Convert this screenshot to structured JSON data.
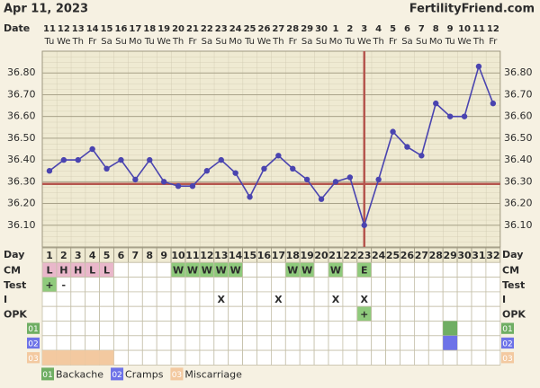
{
  "chart_data": {
    "type": "line",
    "title": "Apr 11, 2023",
    "site": "FertilityFriend.com",
    "date_label": "Date",
    "day_label": "Day",
    "dates": [
      11,
      12,
      13,
      14,
      15,
      16,
      17,
      18,
      19,
      20,
      21,
      22,
      23,
      24,
      25,
      26,
      27,
      28,
      29,
      30,
      1,
      2,
      3,
      4,
      5,
      6,
      7,
      8,
      9,
      10,
      11,
      12
    ],
    "weekdays": [
      "Tu",
      "We",
      "Th",
      "Fr",
      "Sa",
      "Su",
      "Mo",
      "Tu",
      "We",
      "Th",
      "Fr",
      "Sa",
      "Su",
      "Mo",
      "Tu",
      "We",
      "Th",
      "Fr",
      "Sa",
      "Su",
      "Mo",
      "Tu",
      "We",
      "Th",
      "Fr",
      "Sa",
      "Su",
      "Mo",
      "Tu",
      "We",
      "Th",
      "Fr"
    ],
    "days": [
      1,
      2,
      3,
      4,
      5,
      6,
      7,
      8,
      9,
      10,
      11,
      12,
      13,
      14,
      15,
      16,
      17,
      18,
      19,
      20,
      21,
      22,
      23,
      24,
      25,
      26,
      27,
      28,
      29,
      30,
      31,
      32
    ],
    "values": [
      36.35,
      36.4,
      36.4,
      36.45,
      36.36,
      36.4,
      36.31,
      36.4,
      36.3,
      36.28,
      36.28,
      36.35,
      36.4,
      36.34,
      36.23,
      36.36,
      36.42,
      36.36,
      36.31,
      36.22,
      36.3,
      36.32,
      36.1,
      36.31,
      36.53,
      36.46,
      36.42,
      36.66,
      36.6,
      36.6,
      36.83,
      36.66
    ],
    "color": "#4a44b0",
    "ylim": [
      36.0,
      36.9
    ],
    "yticks": [
      {
        "value": 36.1,
        "label": "36.10"
      },
      {
        "value": 36.2,
        "label": "36.20"
      },
      {
        "value": 36.3,
        "label": "36.30"
      },
      {
        "value": 36.4,
        "label": "36.40"
      },
      {
        "value": 36.5,
        "label": "36.50"
      },
      {
        "value": 36.6,
        "label": "36.60"
      },
      {
        "value": 36.7,
        "label": "36.70"
      },
      {
        "value": 36.8,
        "label": "36.80"
      }
    ],
    "grid": true,
    "coverline": 36.29,
    "ovulation_day": 23,
    "line_color": "#b5564e",
    "cell_colors": {
      "L": "#e9b7ca",
      "H": "#e9b7ca",
      "W": "#8fca7c",
      "E": "#8fca7c",
      "+": "#8fca7c"
    },
    "rows": [
      {
        "label": "CM",
        "values": [
          "L",
          "H",
          "H",
          "L",
          "L",
          null,
          null,
          null,
          null,
          "W",
          "W",
          "W",
          "W",
          "W",
          null,
          null,
          null,
          "W",
          "W",
          null,
          "W",
          null,
          "E",
          null,
          null,
          null,
          null,
          null,
          null,
          null,
          null,
          null
        ]
      },
      {
        "label": "Test",
        "values": [
          "+",
          "-",
          null,
          null,
          null,
          null,
          null,
          null,
          null,
          null,
          null,
          null,
          null,
          null,
          null,
          null,
          null,
          null,
          null,
          null,
          null,
          null,
          null,
          null,
          null,
          null,
          null,
          null,
          null,
          null,
          null,
          null
        ]
      },
      {
        "label": "I",
        "values": [
          null,
          null,
          null,
          null,
          null,
          null,
          null,
          null,
          null,
          null,
          null,
          null,
          "X",
          null,
          null,
          null,
          "X",
          null,
          null,
          null,
          "X",
          null,
          "X",
          null,
          null,
          null,
          null,
          null,
          null,
          null,
          null,
          null
        ]
      },
      {
        "label": "OPK",
        "values": [
          null,
          null,
          null,
          null,
          null,
          null,
          null,
          null,
          null,
          null,
          null,
          null,
          null,
          null,
          null,
          null,
          null,
          null,
          null,
          null,
          null,
          null,
          "+",
          null,
          null,
          null,
          null,
          null,
          null,
          null,
          null,
          null
        ]
      }
    ],
    "custom": [
      {
        "code": "01",
        "name": "Backache",
        "color": "#6fae63",
        "days": [
          29
        ]
      },
      {
        "code": "02",
        "name": "Cramps",
        "color": "#6d72e8",
        "days": [
          29
        ]
      },
      {
        "code": "03",
        "name": "Miscarriage",
        "color": "#f3c9a0",
        "days": [
          1,
          2,
          3,
          4,
          5
        ]
      }
    ]
  }
}
